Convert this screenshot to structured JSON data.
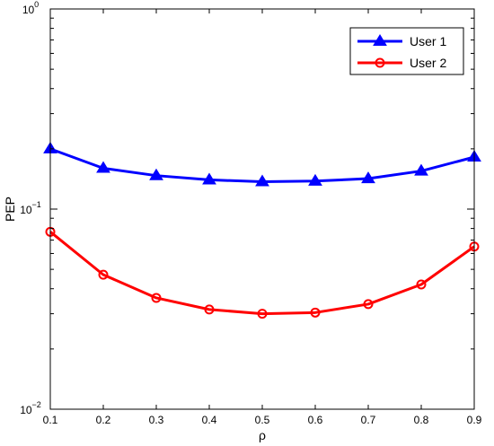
{
  "chart_data": {
    "type": "line",
    "title": "",
    "xlabel": "ρ",
    "ylabel": "PEP",
    "xlim": [
      0.1,
      0.9
    ],
    "ylim": [
      0.01,
      1
    ],
    "yscale": "log",
    "grid": false,
    "legend_position": "top-right",
    "x": [
      0.1,
      0.2,
      0.3,
      0.4,
      0.5,
      0.6,
      0.7,
      0.8,
      0.9
    ],
    "x_ticks": [
      "0.1",
      "0.2",
      "0.3",
      "0.4",
      "0.5",
      "0.6",
      "0.7",
      "0.8",
      "0.9"
    ],
    "y_ticks": [
      {
        "value": 1,
        "base": "10",
        "exp": "0"
      },
      {
        "value": 0.1,
        "base": "10",
        "exp": "−1"
      },
      {
        "value": 0.01,
        "base": "10",
        "exp": "−2"
      }
    ],
    "series": [
      {
        "name": "User 1",
        "color": "#0000ff",
        "marker": "triangle",
        "values": [
          0.2,
          0.16,
          0.147,
          0.14,
          0.137,
          0.138,
          0.142,
          0.155,
          0.182
        ]
      },
      {
        "name": "User 2",
        "color": "#ff0000",
        "marker": "circle",
        "values": [
          0.077,
          0.047,
          0.036,
          0.0315,
          0.03,
          0.0304,
          0.0335,
          0.042,
          0.065
        ]
      }
    ]
  }
}
